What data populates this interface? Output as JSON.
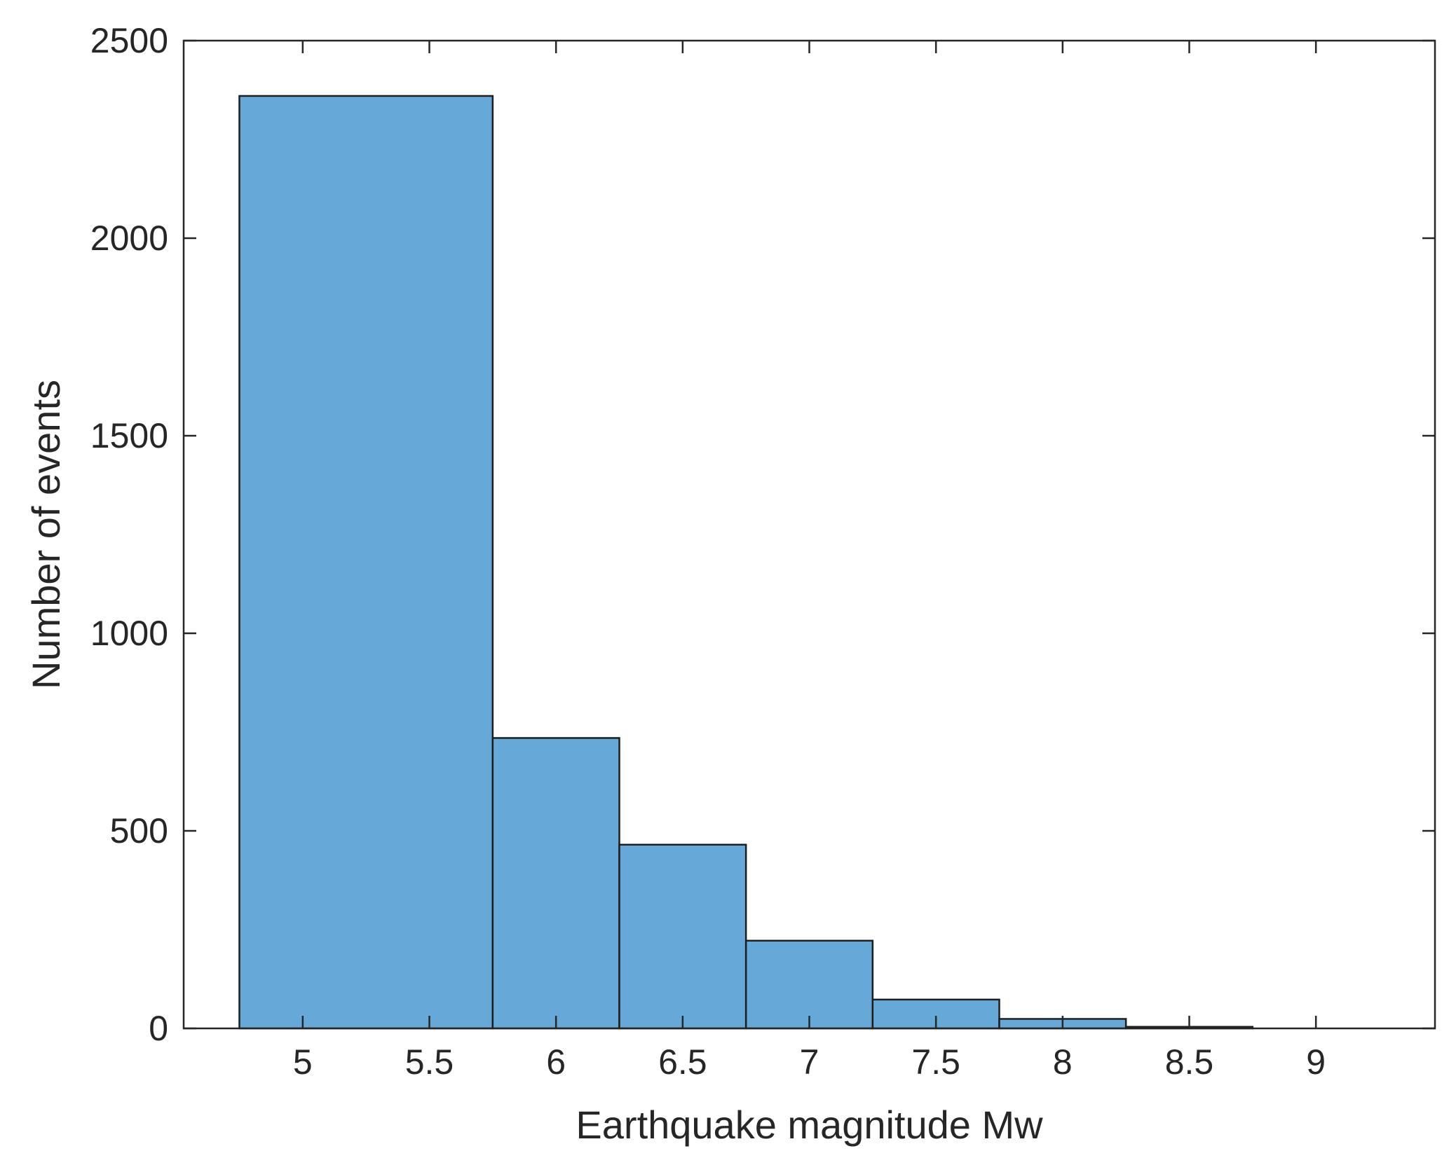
{
  "chart_data": {
    "type": "bar",
    "subtype": "histogram",
    "bin_edges": [
      4.75,
      5.75,
      6.25,
      6.75,
      7.25,
      7.75,
      8.25,
      8.75,
      9.25
    ],
    "values": [
      2360,
      735,
      465,
      222,
      73,
      24,
      4,
      0
    ],
    "xlabel": "Earthquake magnitude Mw",
    "ylabel": "Number of events",
    "xlim": [
      4.53,
      9.47
    ],
    "ylim": [
      0,
      2500
    ],
    "xticks": [
      5,
      5.5,
      6,
      6.5,
      7,
      7.5,
      8,
      8.5,
      9
    ],
    "xtick_labels": [
      "5",
      "5.5",
      "6",
      "6.5",
      "7",
      "7.5",
      "8",
      "8.5",
      "9"
    ],
    "yticks": [
      0,
      500,
      1000,
      1500,
      2000,
      2500
    ],
    "ytick_labels": [
      "0",
      "500",
      "1000",
      "1500",
      "2000",
      "2500"
    ],
    "grid": false,
    "bar_color": "#66a9d8",
    "edge_color": "#1e1e1e"
  }
}
